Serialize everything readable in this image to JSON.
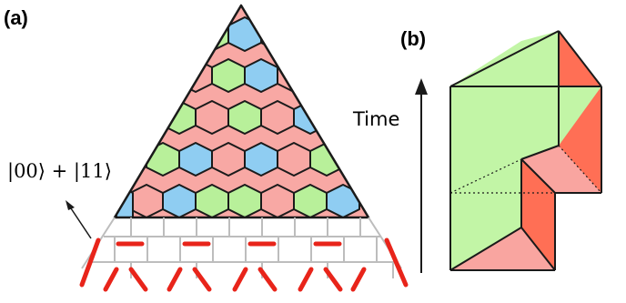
{
  "labels": {
    "panel_a": "(a)",
    "panel_b": "(b)",
    "time_axis": "Time",
    "bell_state": "|00⟩ + |11⟩"
  },
  "colors": {
    "green": "#b8f09a",
    "pink": "#f8a8a4",
    "blue": "#8fcdf2",
    "grey_lattice": "#bdbdbd",
    "red_bonds": "#e8241a",
    "prism_green": "#c2f5a6",
    "prism_red": "#ff6f55",
    "prism_pink": "#f9a5a0",
    "outline": "#1a1a1a"
  },
  "icons": {
    "time_arrow": "up-arrow-icon",
    "pointer_arrow": "diagonal-arrow-icon"
  }
}
